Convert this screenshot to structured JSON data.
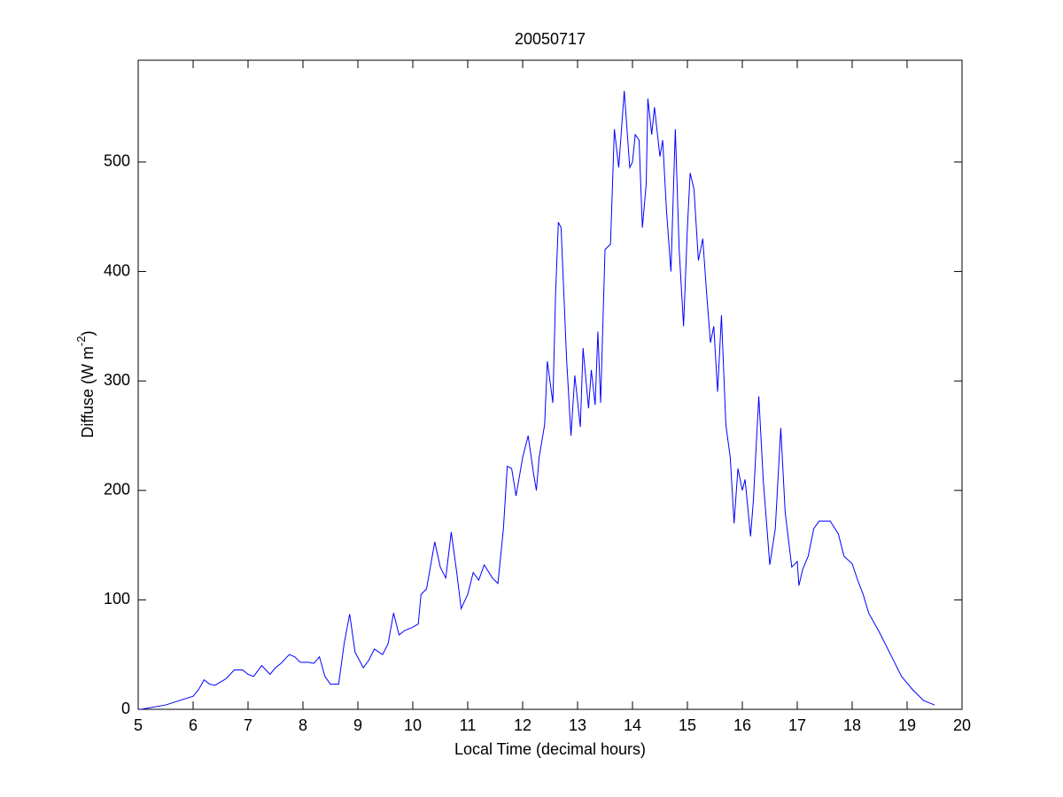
{
  "chart_data": {
    "type": "line",
    "title": "20050717",
    "xlabel": "Local Time (decimal hours)",
    "ylabel": [
      "Diffuse (W m",
      "-2",
      ")"
    ],
    "xlim": [
      5,
      20
    ],
    "ylim": [
      0,
      593
    ],
    "xticks": [
      5,
      6,
      7,
      8,
      9,
      10,
      11,
      12,
      13,
      14,
      15,
      16,
      17,
      18,
      19,
      20
    ],
    "yticks": [
      0,
      100,
      200,
      300,
      400,
      500
    ],
    "grid": false,
    "series": [
      {
        "color": "#0000ff",
        "x": [
          5.05,
          5.5,
          6.0,
          6.1,
          6.2,
          6.3,
          6.4,
          6.5,
          6.6,
          6.75,
          6.9,
          7.0,
          7.1,
          7.25,
          7.4,
          7.5,
          7.6,
          7.75,
          7.85,
          7.95,
          8.1,
          8.2,
          8.3,
          8.4,
          8.5,
          8.65,
          8.75,
          8.85,
          8.95,
          9.1,
          9.2,
          9.3,
          9.45,
          9.55,
          9.65,
          9.75,
          9.85,
          10.0,
          10.1,
          10.15,
          10.25,
          10.4,
          10.5,
          10.6,
          10.7,
          10.8,
          10.88,
          11.0,
          11.1,
          11.2,
          11.3,
          11.45,
          11.55,
          11.65,
          11.72,
          11.8,
          11.88,
          12.0,
          12.1,
          12.2,
          12.25,
          12.3,
          12.4,
          12.45,
          12.55,
          12.6,
          12.65,
          12.7,
          12.8,
          12.88,
          12.95,
          13.05,
          13.1,
          13.2,
          13.25,
          13.32,
          13.37,
          13.42,
          13.5,
          13.6,
          13.67,
          13.75,
          13.85,
          13.95,
          14.0,
          14.05,
          14.12,
          14.18,
          14.25,
          14.28,
          14.35,
          14.4,
          14.5,
          14.55,
          14.62,
          14.7,
          14.78,
          14.85,
          14.93,
          15.0,
          15.05,
          15.12,
          15.2,
          15.28,
          15.35,
          15.42,
          15.48,
          15.55,
          15.62,
          15.7,
          15.78,
          15.85,
          15.92,
          16.0,
          16.05,
          16.15,
          16.2,
          16.3,
          16.38,
          16.5,
          16.6,
          16.7,
          16.78,
          16.9,
          17.0,
          17.03,
          17.1,
          17.2,
          17.3,
          17.4,
          17.6,
          17.75,
          17.85,
          18.0,
          18.1,
          18.2,
          18.3,
          18.5,
          18.7,
          18.9,
          19.1,
          19.3,
          19.5
        ],
        "values": [
          0,
          4,
          12,
          18,
          27,
          23,
          22,
          25,
          28,
          36,
          36,
          32,
          30,
          40,
          32,
          38,
          42,
          50,
          48,
          43,
          43,
          42,
          48,
          30,
          23,
          23,
          60,
          87,
          52,
          38,
          45,
          55,
          50,
          60,
          88,
          68,
          72,
          75,
          78,
          105,
          110,
          153,
          130,
          120,
          162,
          125,
          92,
          105,
          125,
          118,
          132,
          120,
          115,
          165,
          222,
          220,
          195,
          230,
          250,
          215,
          200,
          230,
          260,
          318,
          280,
          380,
          445,
          440,
          320,
          250,
          305,
          258,
          330,
          275,
          310,
          278,
          345,
          280,
          420,
          425,
          530,
          495,
          565,
          495,
          500,
          525,
          520,
          440,
          480,
          558,
          525,
          550,
          505,
          520,
          455,
          400,
          530,
          420,
          350,
          440,
          490,
          475,
          410,
          430,
          380,
          335,
          350,
          290,
          360,
          260,
          230,
          170,
          220,
          200,
          210,
          158,
          190,
          286,
          210,
          132,
          165,
          257,
          180,
          130,
          135,
          113,
          128,
          140,
          165,
          172,
          172,
          160,
          140,
          133,
          118,
          105,
          88,
          70,
          50,
          30,
          18,
          8,
          4
        ]
      }
    ]
  }
}
